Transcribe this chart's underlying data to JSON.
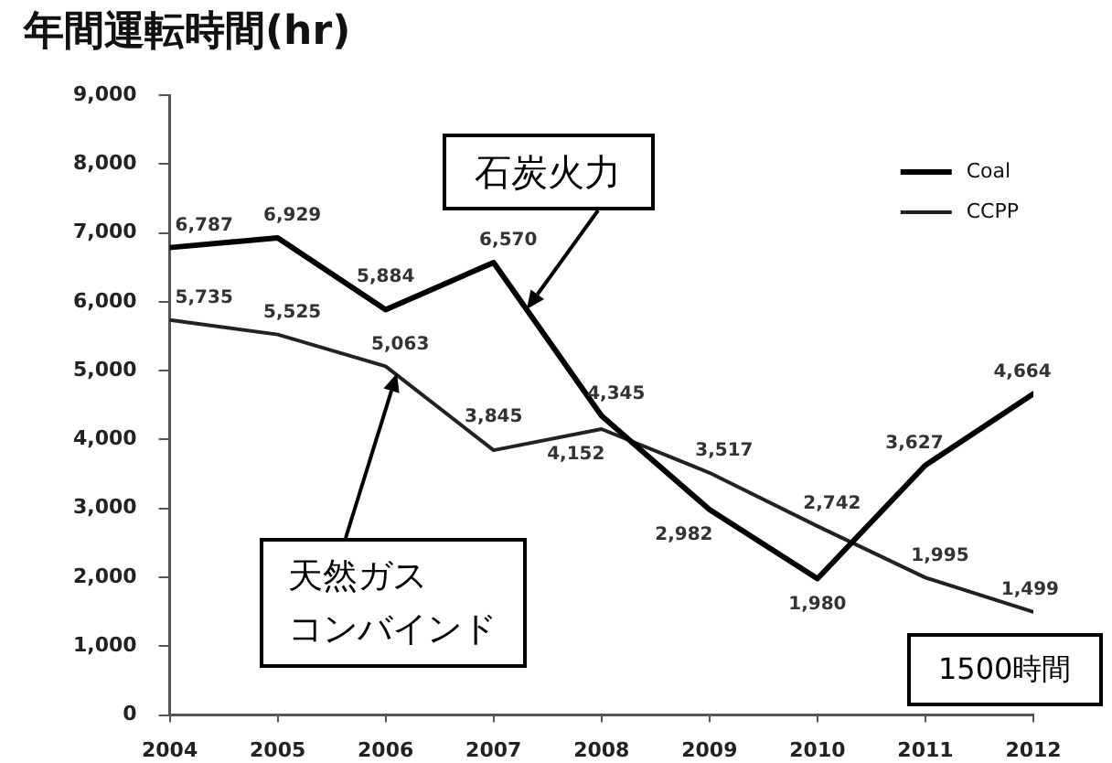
{
  "chart_data": {
    "type": "line",
    "title": "年間運転時間(hr)",
    "x": [
      2004,
      2005,
      2006,
      2007,
      2008,
      2009,
      2010,
      2011,
      2012
    ],
    "series": [
      {
        "name": "Coal",
        "color": "#000000",
        "values": [
          6787,
          6929,
          5884,
          6570,
          4345,
          2982,
          1980,
          3627,
          4664
        ],
        "value_labels": [
          "6,787",
          "6,929",
          "5,884",
          "6,570",
          "4,345",
          "2,982",
          "1,980",
          "3,627",
          "4,664"
        ]
      },
      {
        "name": "CCPP",
        "color": "#222222",
        "values": [
          5735,
          5525,
          5063,
          3845,
          4152,
          3517,
          2742,
          1995,
          1499
        ],
        "value_labels": [
          "5,735",
          "5,525",
          "5,063",
          "3,845",
          "4,152",
          "3,517",
          "2,742",
          "1,995",
          "1,499"
        ]
      }
    ],
    "xlim": [
      2004,
      2012
    ],
    "xticks": [
      2004,
      2005,
      2006,
      2007,
      2008,
      2009,
      2010,
      2011,
      2012
    ],
    "ylim": [
      0,
      9000
    ],
    "yticks": [
      0,
      {
        "value": 1000,
        "label": "1,000"
      },
      {
        "value": 2000,
        "label": "2,000"
      },
      {
        "value": 3000,
        "label": "3,000"
      },
      {
        "value": 4000,
        "label": "4,000"
      },
      {
        "value": 5000,
        "label": "5,000"
      },
      {
        "value": 6000,
        "label": "6,000"
      },
      {
        "value": 7000,
        "label": "7,000"
      },
      {
        "value": 8000,
        "label": "8,000"
      },
      {
        "value": 9000,
        "label": "9,000"
      }
    ],
    "legend": "top right",
    "line_style": "solid",
    "annotations": [
      "石炭火力",
      "天然ガスコンバインド",
      "1500時間"
    ]
  }
}
